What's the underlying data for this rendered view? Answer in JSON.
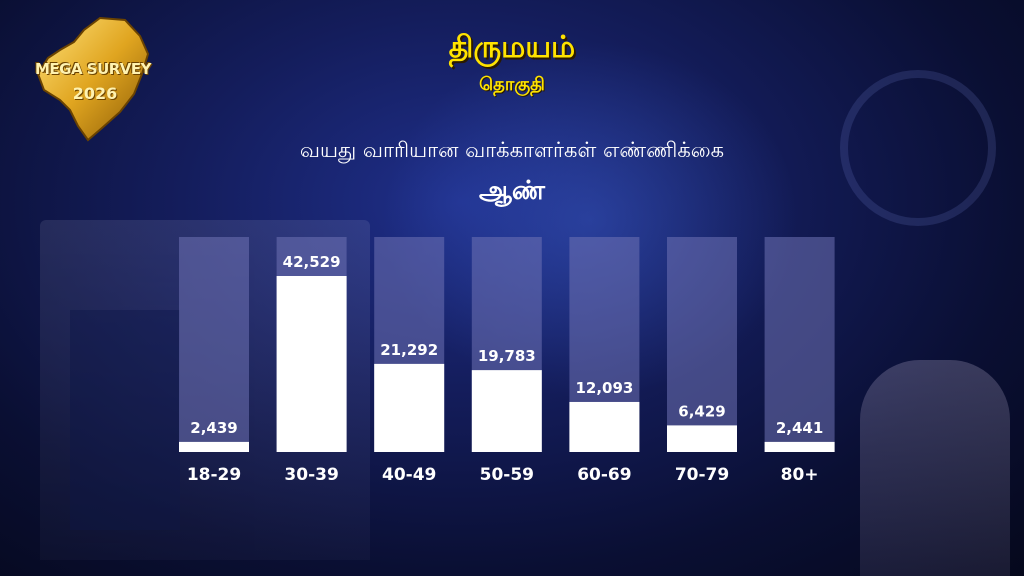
{
  "logo": {
    "text": "MEGA SURVEY",
    "year": "2026"
  },
  "header": {
    "title": "திருமயம்",
    "subtitle": "தொகுதி"
  },
  "chart_data": {
    "type": "bar",
    "title": "வயது வாரியான வாக்காளர்கள் எண்ணிக்கை",
    "subtitle": "ஆண்",
    "categories": [
      "18-29",
      "30-39",
      "40-49",
      "50-59",
      "60-69",
      "70-79",
      "80+"
    ],
    "values": [
      2439,
      42529,
      21292,
      19783,
      12093,
      6429,
      2441
    ],
    "value_labels": [
      "2,439",
      "42,529",
      "21,292",
      "19,783",
      "12,093",
      "6,429",
      "2,441"
    ],
    "ylim": [
      0,
      50000
    ],
    "grid": false,
    "legend": "none",
    "colors": {
      "bar": "#ffffff",
      "track": "#6f72b4",
      "title": "#ffe300"
    }
  }
}
